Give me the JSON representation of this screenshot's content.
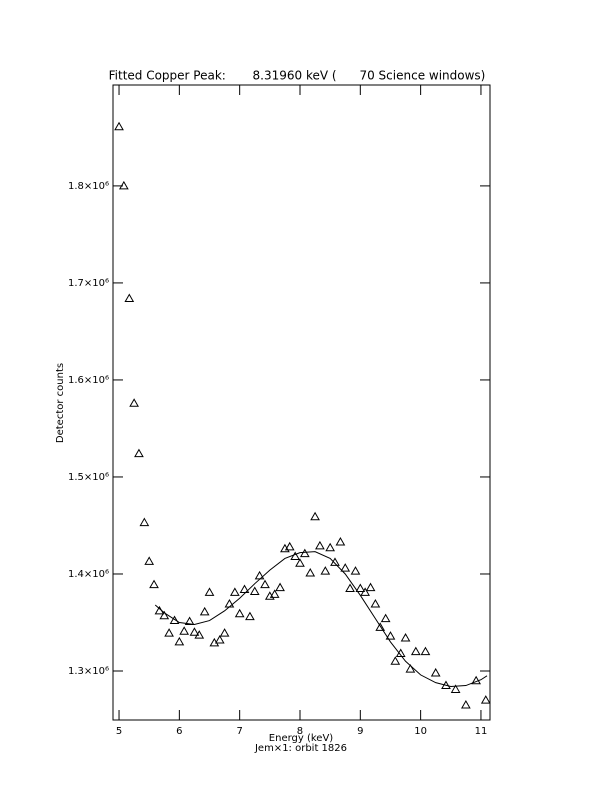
{
  "chart_data": {
    "type": "scatter",
    "title": "Fitted Copper Peak:       8.31960 keV (      70 Science windows)",
    "x_label": "Energy (keV)",
    "subtitle": "Jem×1: orbit 1826",
    "y_label": "Detector counts",
    "xlim": [
      4.9,
      11.15
    ],
    "ylim": [
      1249500,
      1904000
    ],
    "xticks": [
      5,
      6,
      7,
      8,
      9,
      10,
      11
    ],
    "yticks": [
      {
        "value": 1300000,
        "label": "1.3×10⁶"
      },
      {
        "value": 1400000,
        "label": "1.4×10⁶"
      },
      {
        "value": 1500000,
        "label": "1.5×10⁶"
      },
      {
        "value": 1600000,
        "label": "1.6×10⁶"
      },
      {
        "value": 1700000,
        "label": "1.7×10⁶"
      },
      {
        "value": 1800000,
        "label": "1.8×10⁶"
      }
    ],
    "series": [
      {
        "type": "scatter",
        "marker": "triangle",
        "color": "#000000",
        "x": [
          5.0,
          5.08,
          5.17,
          5.25,
          5.33,
          5.42,
          5.5,
          5.58,
          5.67,
          5.75,
          5.83,
          5.92,
          6.0,
          6.08,
          6.17,
          6.25,
          6.33,
          6.42,
          6.5,
          6.58,
          6.67,
          6.75,
          6.83,
          6.92,
          7.0,
          7.08,
          7.17,
          7.25,
          7.33,
          7.42,
          7.5,
          7.58,
          7.67,
          7.75,
          7.83,
          7.92,
          8.0,
          8.08,
          8.17,
          8.25,
          8.33,
          8.42,
          8.5,
          8.58,
          8.67,
          8.75,
          8.83,
          8.92,
          9.0,
          9.08,
          9.17,
          9.25,
          9.33,
          9.42,
          9.5,
          9.58,
          9.67,
          9.75,
          9.83,
          9.92,
          10.08,
          10.25,
          10.42,
          10.58,
          10.75,
          10.92,
          11.08
        ],
        "values": [
          1861000,
          1800000,
          1684000,
          1576000,
          1524000,
          1453000,
          1413000,
          1389000,
          1362000,
          1357000,
          1339000,
          1352000,
          1330000,
          1341000,
          1351000,
          1340000,
          1337000,
          1361000,
          1381000,
          1329000,
          1332000,
          1339000,
          1369000,
          1381000,
          1359000,
          1384000,
          1356000,
          1382000,
          1398000,
          1389000,
          1377000,
          1379000,
          1386000,
          1426000,
          1428000,
          1418000,
          1411000,
          1421000,
          1401000,
          1459000,
          1429000,
          1403000,
          1427000,
          1412000,
          1433000,
          1406000,
          1385000,
          1403000,
          1385000,
          1381000,
          1386000,
          1369000,
          1345000,
          1354000,
          1336000,
          1310000,
          1318000,
          1334000,
          1302000,
          1320000,
          1320000,
          1298000,
          1285000,
          1281000,
          1265000,
          1290000,
          1270000
        ]
      },
      {
        "type": "line",
        "color": "#000000",
        "x": [
          5.6,
          5.75,
          6.0,
          6.25,
          6.5,
          6.75,
          7.0,
          7.25,
          7.5,
          7.75,
          8.0,
          8.25,
          8.5,
          8.75,
          9.0,
          9.25,
          9.5,
          9.75,
          10.0,
          10.25,
          10.5,
          10.75,
          11.0,
          11.1
        ],
        "values": [
          1368000,
          1360000,
          1350000,
          1348000,
          1352000,
          1362000,
          1375000,
          1390000,
          1404000,
          1416000,
          1422000,
          1423000,
          1416000,
          1400000,
          1378000,
          1354000,
          1330000,
          1310000,
          1296000,
          1288000,
          1284000,
          1285000,
          1291000,
          1295000
        ]
      }
    ]
  }
}
